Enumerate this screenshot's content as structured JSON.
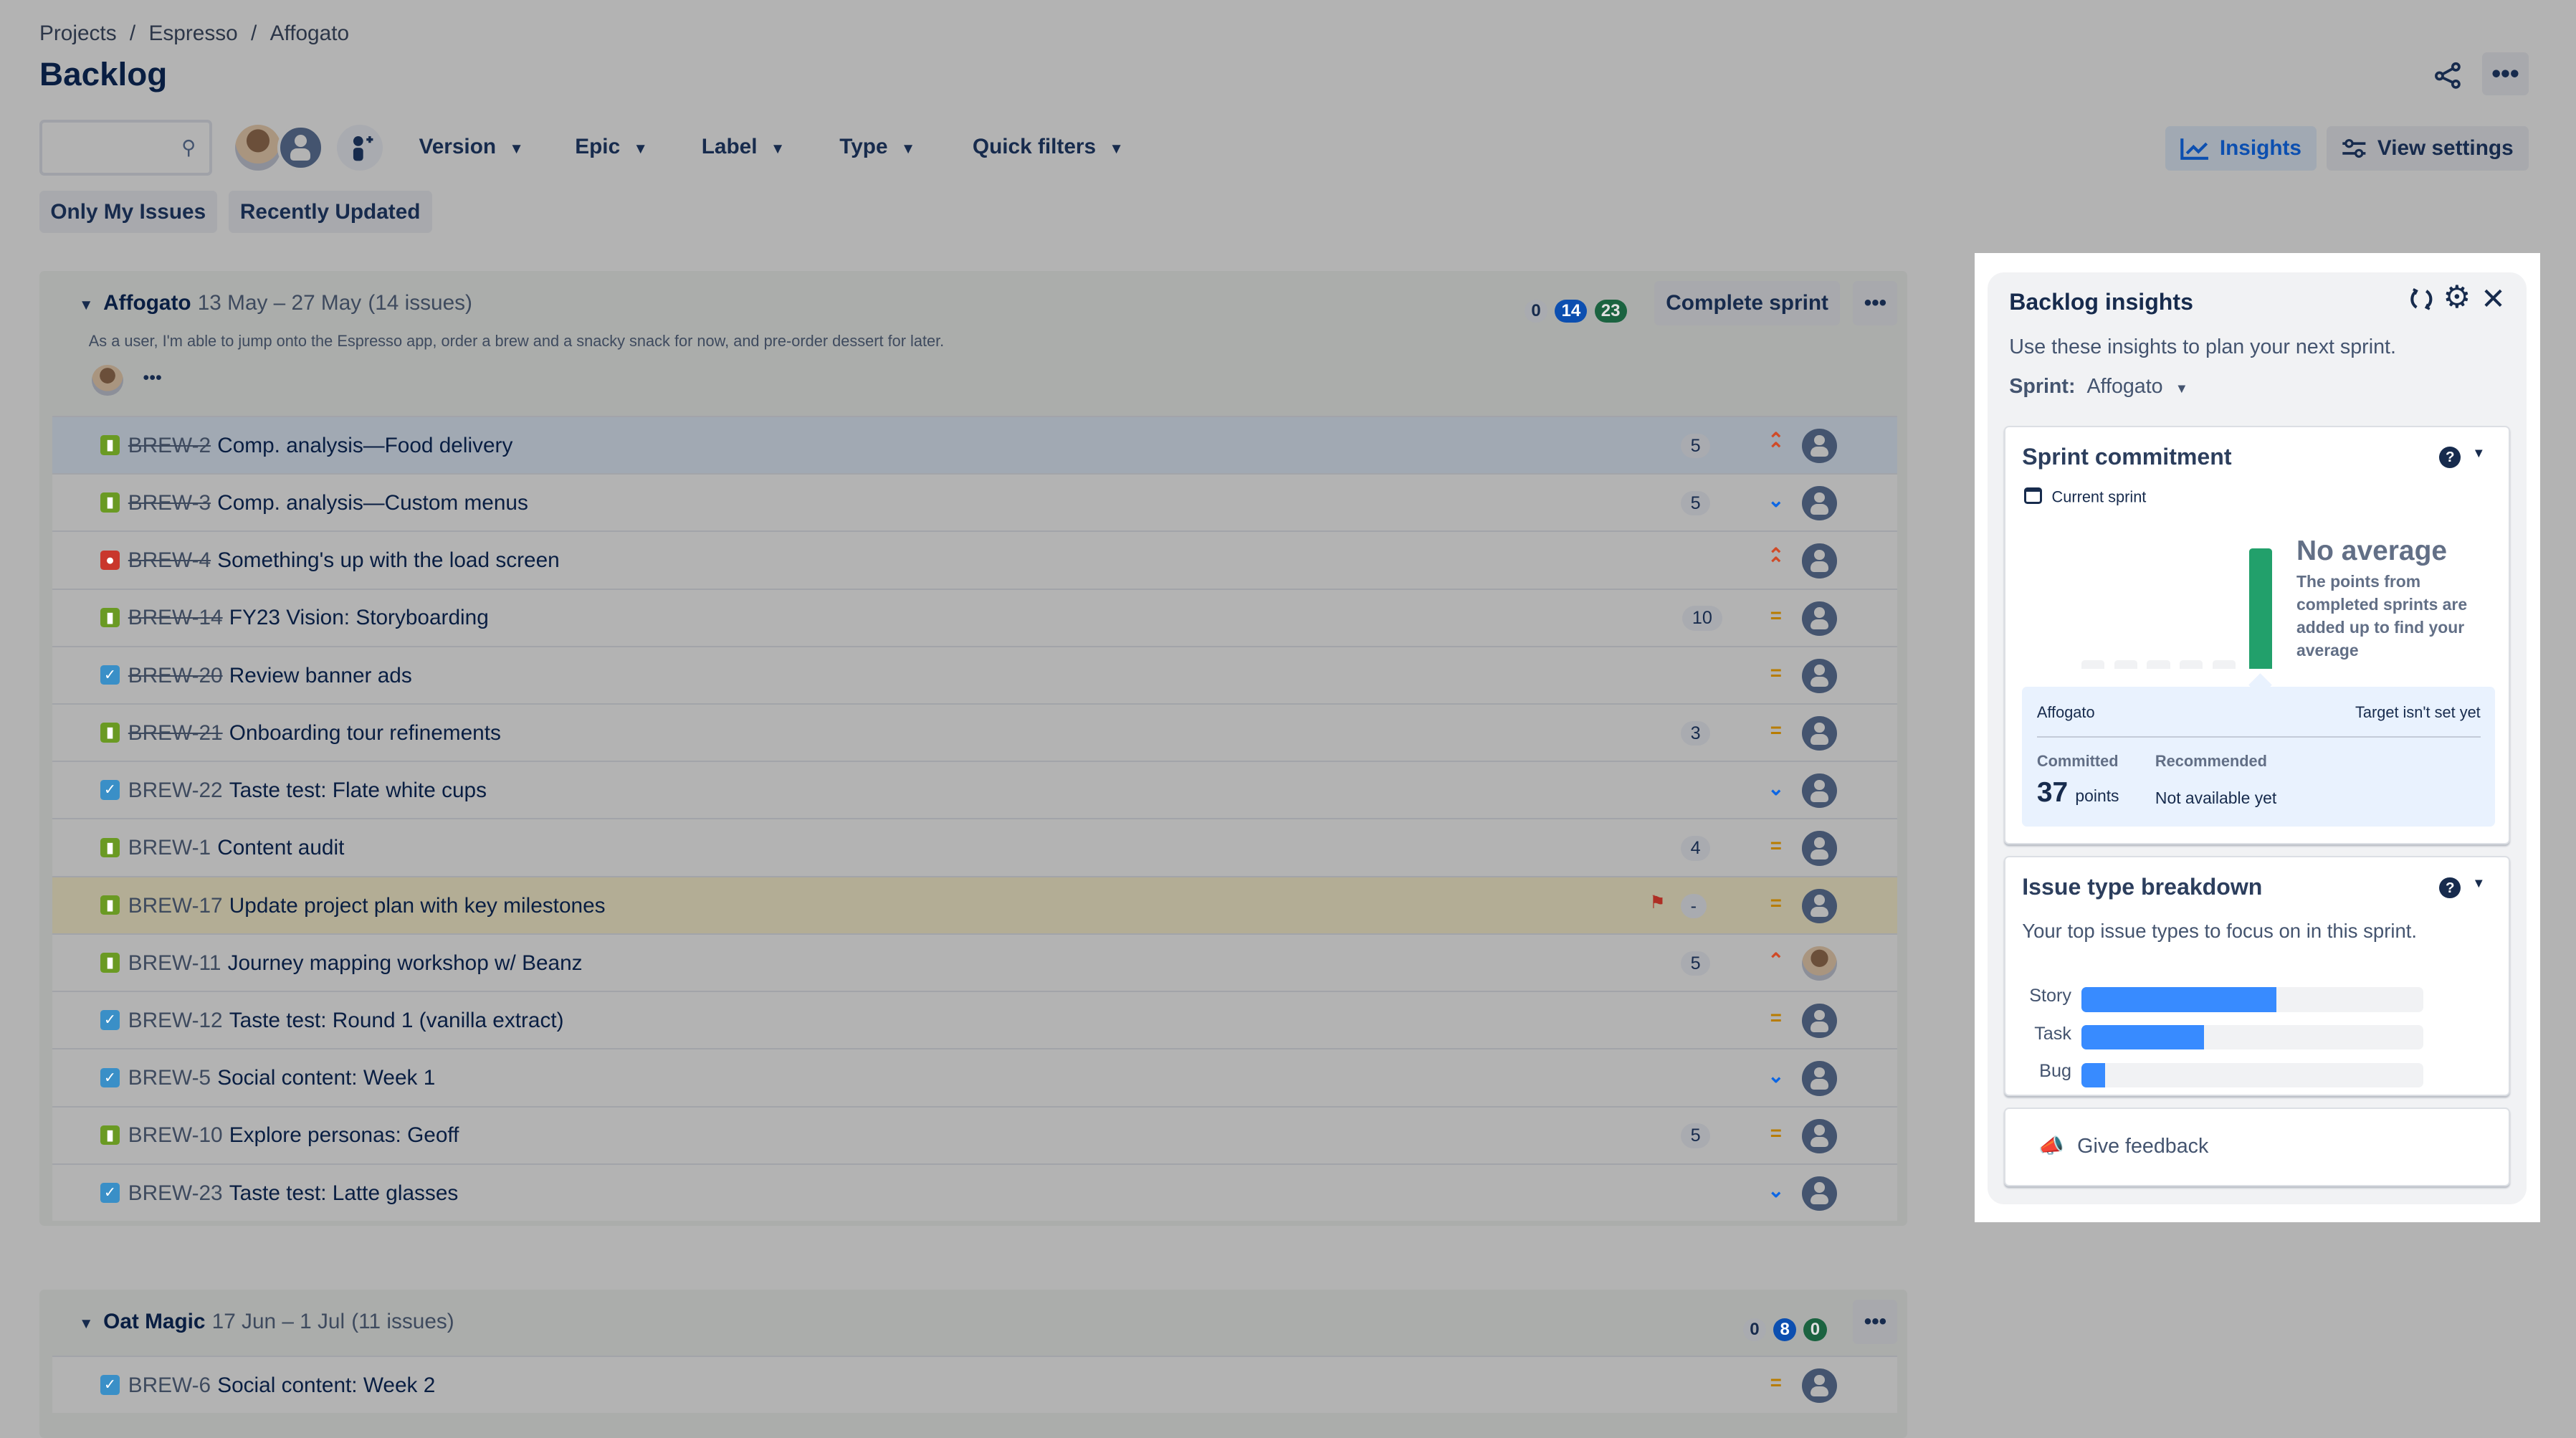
{
  "breadcrumb": [
    "Projects",
    "Espresso",
    "Affogato"
  ],
  "page_title": "Backlog",
  "search": {
    "value": "",
    "placeholder": ""
  },
  "filters": [
    {
      "label": "Version"
    },
    {
      "label": "Epic"
    },
    {
      "label": "Label"
    },
    {
      "label": "Type"
    },
    {
      "label": "Quick filters"
    }
  ],
  "quick_buttons": [
    "Only My Issues",
    "Recently Updated"
  ],
  "header_actions": {
    "insights": "Insights",
    "view_settings": "View settings"
  },
  "colors": {
    "accent": "#0c66e4",
    "done_green": "#216e4e",
    "story": "#6a9a23",
    "task": "#4bade8",
    "bug": "#e5493a",
    "highlight_row": "#a1a9b3",
    "flag_row": "#b3ad95",
    "bar": "#388bff",
    "commit_bar": "#22a06b"
  },
  "sprints": [
    {
      "name": "Affogato",
      "dates": "13 May – 27 May",
      "count": "(14 issues)",
      "goal": "As a user, I'm able to jump onto the Espresso app, order a brew and a snacky snack for now, and pre-order dessert for later.",
      "status_counts": {
        "todo": "0",
        "in_progress": "14",
        "done": "23"
      },
      "complete_label": "Complete sprint",
      "issues": [
        {
          "type": "story",
          "key": "BREW-2",
          "summary": "Comp. analysis—Food delivery",
          "done": true,
          "points": "5",
          "priority": "highest",
          "assignee": "unassigned",
          "state": "selected"
        },
        {
          "type": "story",
          "key": "BREW-3",
          "summary": "Comp. analysis—Custom menus",
          "done": true,
          "points": "5",
          "priority": "low",
          "assignee": "unassigned"
        },
        {
          "type": "bug",
          "key": "BREW-4",
          "summary": "Something's up with the load screen",
          "done": true,
          "points": "",
          "priority": "highest",
          "assignee": "unassigned"
        },
        {
          "type": "story",
          "key": "BREW-14",
          "summary": "FY23 Vision: Storyboarding",
          "done": true,
          "points": "10",
          "priority": "medium",
          "assignee": "unassigned"
        },
        {
          "type": "task",
          "key": "BREW-20",
          "summary": "Review banner ads",
          "done": true,
          "points": "",
          "priority": "medium",
          "assignee": "unassigned"
        },
        {
          "type": "story",
          "key": "BREW-21",
          "summary": "Onboarding tour refinements",
          "done": true,
          "points": "3",
          "priority": "medium",
          "assignee": "unassigned"
        },
        {
          "type": "task",
          "key": "BREW-22",
          "summary": "Taste test: Flate white cups",
          "done": false,
          "points": "",
          "priority": "low",
          "assignee": "unassigned"
        },
        {
          "type": "story",
          "key": "BREW-1",
          "summary": "Content audit",
          "done": false,
          "points": "4",
          "priority": "medium",
          "assignee": "unassigned"
        },
        {
          "type": "story",
          "key": "BREW-17",
          "summary": "Update project plan with key milestones",
          "done": false,
          "points": "-",
          "priority": "medium",
          "assignee": "unassigned",
          "flagged": true
        },
        {
          "type": "story",
          "key": "BREW-11",
          "summary": "Journey mapping workshop w/ Beanz",
          "done": false,
          "points": "5",
          "priority": "high",
          "assignee": "photo"
        },
        {
          "type": "task",
          "key": "BREW-12",
          "summary": "Taste test: Round 1 (vanilla extract)",
          "done": false,
          "points": "",
          "priority": "medium",
          "assignee": "unassigned"
        },
        {
          "type": "task",
          "key": "BREW-5",
          "summary": "Social content: Week 1",
          "done": false,
          "points": "",
          "priority": "low",
          "assignee": "unassigned"
        },
        {
          "type": "story",
          "key": "BREW-10",
          "summary": "Explore personas: Geoff",
          "done": false,
          "points": "5",
          "priority": "medium",
          "assignee": "unassigned"
        },
        {
          "type": "task",
          "key": "BREW-23",
          "summary": "Taste test: Latte glasses",
          "done": false,
          "points": "",
          "priority": "low",
          "assignee": "unassigned"
        }
      ]
    },
    {
      "name": "Oat Magic",
      "dates": "17 Jun – 1 Jul",
      "count": "(11 issues)",
      "status_counts": {
        "todo": "0",
        "in_progress": "8",
        "done": "0"
      },
      "issues": [
        {
          "type": "task",
          "key": "BREW-6",
          "summary": "Social content: Week 2",
          "done": false,
          "points": "",
          "priority": "medium",
          "assignee": "unassigned"
        }
      ]
    }
  ],
  "insights": {
    "title": "Backlog insights",
    "subtitle": "Use these insights to plan your next sprint.",
    "sprint_label": "Sprint:",
    "sprint_value": "Affogato",
    "commitment": {
      "title": "Sprint commitment",
      "period": "Current sprint",
      "no_average": "No average",
      "no_average_desc": "The points from completed sprints are added up to find your average",
      "sprint": "Affogato",
      "target": "Target isn't set yet",
      "committed_label": "Committed",
      "committed_value": "37",
      "committed_unit": "points",
      "recommended_label": "Recommended",
      "recommended_value": "Not available yet"
    },
    "breakdown": {
      "title": "Issue type breakdown",
      "subtitle": "Your top issue types to focus on in this sprint.",
      "items": [
        {
          "label": "Story",
          "fraction": 0.57
        },
        {
          "label": "Task",
          "fraction": 0.36
        },
        {
          "label": "Bug",
          "fraction": 0.07
        }
      ]
    },
    "feedback": "Give feedback"
  }
}
